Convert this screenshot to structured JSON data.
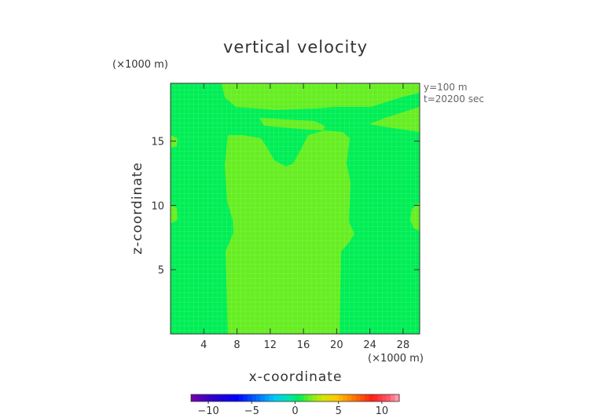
{
  "chart_data": {
    "type": "contour",
    "title": "vertical velocity",
    "xlabel": "x-coordinate",
    "ylabel": "z-coordinate",
    "x_scale_note": "(×1000 m)",
    "z_scale_note": "(×1000 m)",
    "annotations": [
      "y=100 m",
      "t=20200 sec"
    ],
    "xlim": [
      0,
      30
    ],
    "ylim": [
      0,
      19.5
    ],
    "x_ticks": [
      4,
      8,
      12,
      16,
      20,
      24,
      28
    ],
    "y_ticks": [
      5,
      10,
      15
    ],
    "colorbar": {
      "min": -12,
      "max": 12,
      "ticks": [
        -10,
        -5,
        0,
        5,
        10
      ],
      "tick_labels": [
        "−10",
        "−5",
        "0",
        "5",
        "10"
      ]
    },
    "regions": [
      {
        "label": "0 to 1",
        "color": "#00ee55"
      },
      {
        "label": "1 to 2",
        "color": "#66ee22"
      }
    ]
  }
}
